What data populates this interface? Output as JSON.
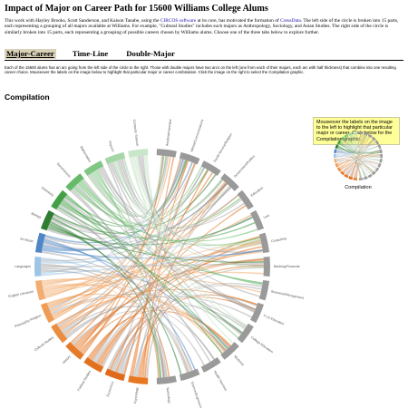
{
  "page": {
    "title": "Impact of Major on Career Path for 15600 Williams College Alums",
    "intro": {
      "p1": "This work with Hayley Brooks, Scott Sanderson, and Kaison Tanabe, using the ",
      "link1": "CIRCOS software",
      "p2": " at its core, has motivated the formation of ",
      "link2": "CreusData",
      "p3": ". The left side of the circle is broken into 15 parts, each representing a grouping of all majors available at Williams. For example, \"Cultural Studies\" includes such majors as Anthropology, Sociology, and Asian Studies. The right side of the circle is similarly broken into 15 parts, each representing a grouping of possible careers chosen by Williams alums. Choose one of the three tabs below to explore further."
    }
  },
  "tabs": [
    {
      "label": "Major-Career"
    },
    {
      "label": "Time-Line"
    },
    {
      "label": "Double-Major"
    }
  ],
  "description": "Each of the 15600 alums has an arc going from the left side of the circle to the right. Those with double majors have two arcs on the left (one from each of their majors, each arc with half thickness) that combine into one resulting career choice. Mouseover the labels on the image below to highlight that particular major or career combination. Click the image on the right to select the Compilation graphic.",
  "section": {
    "title": "Compilation"
  },
  "diagram": {
    "majors": [
      {
        "label": "Psychology",
        "color": "#e87722"
      },
      {
        "label": "Economics",
        "color": "#e06a1b"
      },
      {
        "label": "Political Studies",
        "color": "#e2711f"
      },
      {
        "label": "History",
        "color": "#e57a2a"
      },
      {
        "label": "Cultural Studies",
        "color": "#eb8d3f"
      },
      {
        "label": "Philosophy Religion",
        "color": "#ef9c55"
      },
      {
        "label": "English Literature",
        "color": "#f2ae72"
      },
      {
        "label": "Languages",
        "color": "#9ec5e6"
      },
      {
        "label": "Art Music",
        "color": "#4f86c6"
      },
      {
        "label": "Biology",
        "color": "#2e7d32"
      },
      {
        "label": "Chemistry",
        "color": "#43a047"
      },
      {
        "label": "Geosciences",
        "color": "#66bb6a"
      },
      {
        "label": "Mathematics",
        "color": "#81c784"
      },
      {
        "label": "Physics",
        "color": "#a5d6a7"
      },
      {
        "label": "Computer Science",
        "color": "#c8e6c9"
      }
    ],
    "careers": [
      {
        "label": "Arts/Entertainment"
      },
      {
        "label": "Media/Communications"
      },
      {
        "label": "Social Service/Religion"
      },
      {
        "label": "Government/Politics"
      },
      {
        "label": "Education"
      },
      {
        "label": "Law"
      },
      {
        "label": "Consulting"
      },
      {
        "label": "Banking/Financial"
      },
      {
        "label": "Business/Management"
      },
      {
        "label": "K-12 Education"
      },
      {
        "label": "College Education"
      },
      {
        "label": "Medicine"
      },
      {
        "label": "Health Services"
      },
      {
        "label": "Science/Engineering"
      },
      {
        "label": "Technology"
      }
    ],
    "neutral_color": "#9a9a9a"
  },
  "sidebar": {
    "hint": "Mouseover the labels on the image to the left to highlight that particular major or career. Click below for the Compilation graphic.",
    "thumb_label": "Compilation"
  }
}
